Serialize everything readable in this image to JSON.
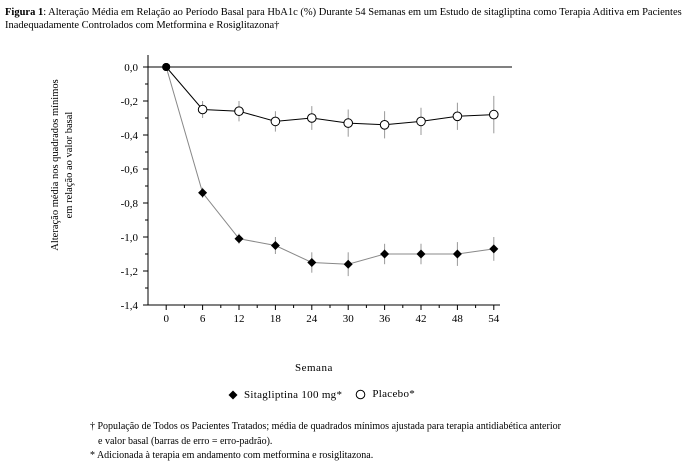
{
  "caption": {
    "bold": "Figura 1",
    "text": ": Alteração Média em Relação ao Período Basal para HbA1c (%) Durante 54 Semanas em um Estudo de sitagliptina como Terapia Aditiva em Pacientes Inadequadamente Controlados com Metformina e Rosiglitazona†"
  },
  "chart_data": {
    "type": "line",
    "xlabel": "Semana",
    "ylabel_line1": "Alteração média nos quadrados mínimos",
    "ylabel_line2": "em relação ao valor basal",
    "xlim": [
      -3,
      57
    ],
    "ylim": [
      -1.4,
      0.0
    ],
    "x_ticks": [
      0,
      6,
      12,
      18,
      24,
      30,
      36,
      42,
      48,
      54
    ],
    "y_ticks": [
      0.0,
      -0.2,
      -0.4,
      -0.6,
      -0.8,
      -1.0,
      -1.2,
      -1.4
    ],
    "y_tick_labels": [
      "0,0",
      "-0,2",
      "-0,4",
      "-0,6",
      "-0,8",
      "-1,0",
      "-1,2",
      "-1,4"
    ],
    "series": [
      {
        "name": "Sitagliptina 100 mg*",
        "marker": "diamond",
        "color": "#000000",
        "x": [
          0,
          6,
          12,
          18,
          24,
          30,
          36,
          42,
          48,
          54
        ],
        "y": [
          0.0,
          -0.74,
          -1.01,
          -1.05,
          -1.15,
          -1.16,
          -1.1,
          -1.1,
          -1.1,
          -1.07
        ],
        "err": [
          0.0,
          0.03,
          0.03,
          0.05,
          0.06,
          0.07,
          0.06,
          0.06,
          0.07,
          0.07
        ]
      },
      {
        "name": "Placebo*",
        "marker": "circle",
        "color": "#000000",
        "x": [
          0,
          6,
          12,
          18,
          24,
          30,
          36,
          42,
          48,
          54
        ],
        "y": [
          0.0,
          -0.25,
          -0.26,
          -0.32,
          -0.3,
          -0.33,
          -0.34,
          -0.32,
          -0.29,
          -0.28
        ],
        "err": [
          0.0,
          0.05,
          0.06,
          0.06,
          0.07,
          0.08,
          0.08,
          0.08,
          0.08,
          0.11
        ]
      }
    ]
  },
  "footnotes": {
    "line1": "† População de Todos os Pacientes Tratados; média de quadrados mínimos ajustada para terapia antidiabética anterior",
    "line2": "e valor basal (barras de erro = erro-padrão).",
    "line3": "* Adicionada à terapia em andamento com metformina e rosiglitazona."
  }
}
